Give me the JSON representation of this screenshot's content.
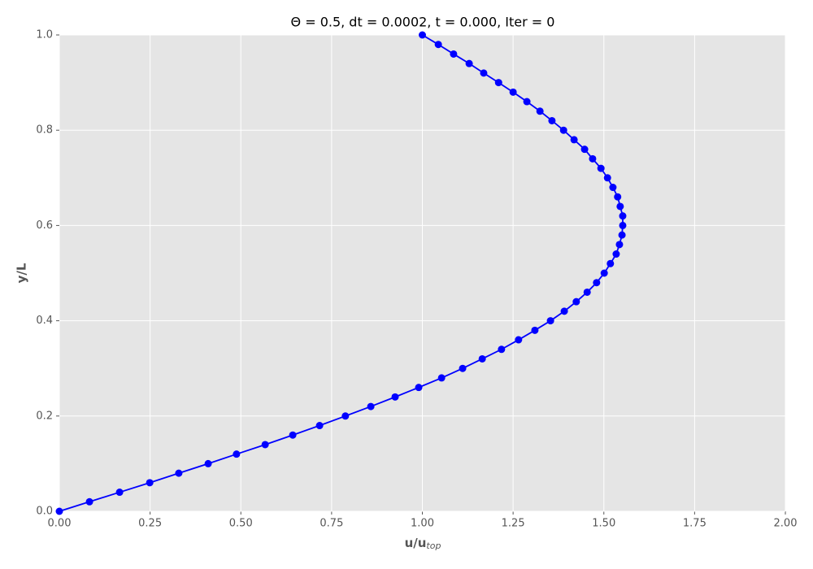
{
  "chart_data": {
    "type": "line",
    "title": "Θ = 0.5, dt = 0.0002, t = 0.000, Iter = 0",
    "xlabel": "u/u",
    "xlabel_subscript": "top",
    "ylabel": "y/L",
    "x": [
      0,
      0.083,
      0.166,
      0.249,
      0.329,
      0.41,
      0.488,
      0.567,
      0.643,
      0.717,
      0.788,
      0.858,
      0.925,
      0.99,
      1.053,
      1.111,
      1.165,
      1.218,
      1.265,
      1.31,
      1.353,
      1.391,
      1.424,
      1.454,
      1.48,
      1.501,
      1.518,
      1.534,
      1.543,
      1.55,
      1.552,
      1.552,
      1.545,
      1.538,
      1.525,
      1.51,
      1.492,
      1.469,
      1.447,
      1.418,
      1.389,
      1.357,
      1.324,
      1.288,
      1.25,
      1.21,
      1.169,
      1.129,
      1.086,
      1.044,
      1.0
    ],
    "values": [
      0,
      0.02,
      0.04,
      0.06,
      0.08,
      0.1,
      0.12,
      0.14,
      0.16,
      0.18,
      0.2,
      0.22,
      0.24,
      0.26,
      0.28,
      0.3,
      0.32,
      0.34,
      0.36,
      0.38,
      0.4,
      0.42,
      0.44,
      0.46,
      0.48,
      0.5,
      0.52,
      0.54,
      0.56,
      0.58,
      0.6,
      0.62,
      0.64,
      0.66,
      0.68,
      0.7,
      0.72,
      0.74,
      0.76,
      0.78,
      0.8,
      0.82,
      0.84,
      0.86,
      0.88,
      0.9,
      0.92,
      0.94,
      0.96,
      0.98,
      1.0
    ],
    "color": "#0000ff",
    "markers": true,
    "xlim": [
      0,
      2
    ],
    "ylim": [
      0,
      1
    ],
    "xticks": [
      {
        "value": 0,
        "label": "0.00"
      },
      {
        "value": 0.25,
        "label": "0.25"
      },
      {
        "value": 0.5,
        "label": "0.50"
      },
      {
        "value": 0.75,
        "label": "0.75"
      },
      {
        "value": 1,
        "label": "1.00"
      },
      {
        "value": 1.25,
        "label": "1.25"
      },
      {
        "value": 1.5,
        "label": "1.50"
      },
      {
        "value": 1.75,
        "label": "1.75"
      },
      {
        "value": 2,
        "label": "2.00"
      }
    ],
    "yticks": [
      {
        "value": 0,
        "label": "0.0"
      },
      {
        "value": 0.2,
        "label": "0.2"
      },
      {
        "value": 0.4,
        "label": "0.4"
      },
      {
        "value": 0.6,
        "label": "0.6"
      },
      {
        "value": 0.8,
        "label": "0.8"
      },
      {
        "value": 1,
        "label": "1.0"
      }
    ],
    "grid": true
  }
}
